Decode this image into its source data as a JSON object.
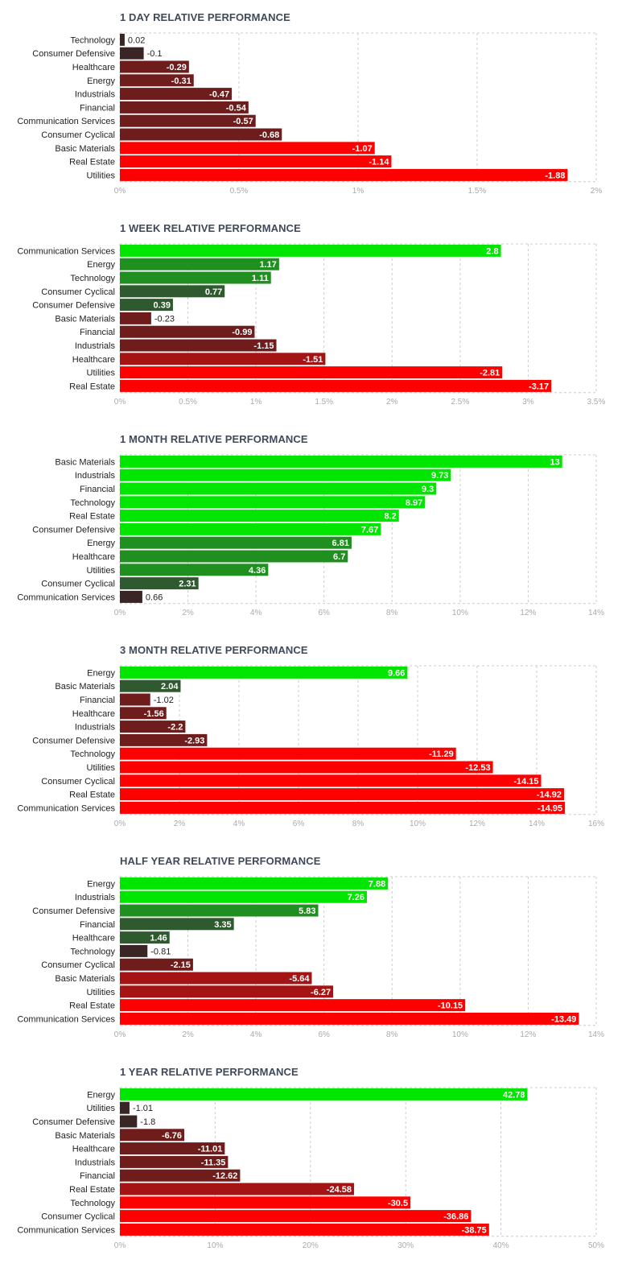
{
  "colors": {
    "positive_strong": "#00e600",
    "positive_mid": "#1f8f1f",
    "positive_dark": "#2f5a2f",
    "neutral_dark": "#3a2525",
    "negative_dark": "#6e1c1c",
    "negative_mid": "#a51414",
    "negative_strong": "#ff0000",
    "grid": "#cccccc",
    "tick_text": "#aaaaaa",
    "title_text": "#3f4a5a"
  },
  "chart_data": [
    {
      "type": "bar",
      "orientation": "horizontal",
      "title": "1 DAY RELATIVE PERFORMANCE",
      "categories": [
        "Technology",
        "Consumer Defensive",
        "Healthcare",
        "Energy",
        "Industrials",
        "Financial",
        "Communication Services",
        "Consumer Cyclical",
        "Basic Materials",
        "Real Estate",
        "Utilities"
      ],
      "values": [
        0.02,
        -0.1,
        -0.29,
        -0.31,
        -0.47,
        -0.54,
        -0.57,
        -0.68,
        -1.07,
        -1.14,
        -1.88
      ],
      "value_labels": [
        "0.02",
        "-0.1",
        "-0.29",
        "-0.31",
        "-0.47",
        "-0.54",
        "-0.57",
        "-0.68",
        "-1.07",
        "-1.14",
        "-1.88"
      ],
      "xlim": [
        0,
        2
      ],
      "xticks": [
        "0%",
        "0.5%",
        "1%",
        "1.5%",
        "2%"
      ],
      "tick_values": [
        0,
        0.5,
        1,
        1.5,
        2
      ]
    },
    {
      "type": "bar",
      "orientation": "horizontal",
      "title": "1 WEEK RELATIVE PERFORMANCE",
      "categories": [
        "Communication Services",
        "Energy",
        "Technology",
        "Consumer Cyclical",
        "Consumer Defensive",
        "Basic Materials",
        "Financial",
        "Industrials",
        "Healthcare",
        "Utilities",
        "Real Estate"
      ],
      "values": [
        2.8,
        1.17,
        1.11,
        0.77,
        0.39,
        -0.23,
        -0.99,
        -1.15,
        -1.51,
        -2.81,
        -3.17
      ],
      "value_labels": [
        "2.8",
        "1.17",
        "1.11",
        "0.77",
        "0.39",
        "-0.23",
        "-0.99",
        "-1.15",
        "-1.51",
        "-2.81",
        "-3.17"
      ],
      "xlim": [
        0,
        3.5
      ],
      "xticks": [
        "0%",
        "0.5%",
        "1%",
        "1.5%",
        "2%",
        "2.5%",
        "3%",
        "3.5%"
      ],
      "tick_values": [
        0,
        0.5,
        1,
        1.5,
        2,
        2.5,
        3,
        3.5
      ]
    },
    {
      "type": "bar",
      "orientation": "horizontal",
      "title": "1 MONTH RELATIVE PERFORMANCE",
      "categories": [
        "Basic Materials",
        "Industrials",
        "Financial",
        "Technology",
        "Real Estate",
        "Consumer Defensive",
        "Energy",
        "Healthcare",
        "Utilities",
        "Consumer Cyclical",
        "Communication Services"
      ],
      "values": [
        13,
        9.73,
        9.3,
        8.97,
        8.2,
        7.67,
        6.81,
        6.7,
        4.36,
        2.31,
        0.66
      ],
      "value_labels": [
        "13",
        "9.73",
        "9.3",
        "8.97",
        "8.2",
        "7.67",
        "6.81",
        "6.7",
        "4.36",
        "2.31",
        "0.66"
      ],
      "xlim": [
        0,
        14
      ],
      "xticks": [
        "0%",
        "2%",
        "4%",
        "6%",
        "8%",
        "10%",
        "12%",
        "14%"
      ],
      "tick_values": [
        0,
        2,
        4,
        6,
        8,
        10,
        12,
        14
      ]
    },
    {
      "type": "bar",
      "orientation": "horizontal",
      "title": "3 MONTH RELATIVE PERFORMANCE",
      "categories": [
        "Energy",
        "Basic Materials",
        "Financial",
        "Healthcare",
        "Industrials",
        "Consumer Defensive",
        "Technology",
        "Utilities",
        "Consumer Cyclical",
        "Real Estate",
        "Communication Services"
      ],
      "values": [
        9.66,
        2.04,
        -1.02,
        -1.56,
        -2.2,
        -2.93,
        -11.29,
        -12.53,
        -14.15,
        -14.92,
        -14.95
      ],
      "value_labels": [
        "9.66",
        "2.04",
        "-1.02",
        "-1.56",
        "-2.2",
        "-2.93",
        "-11.29",
        "-12.53",
        "-14.15",
        "-14.92",
        "-14.95"
      ],
      "xlim": [
        0,
        16
      ],
      "xticks": [
        "0%",
        "2%",
        "4%",
        "6%",
        "8%",
        "10%",
        "12%",
        "14%",
        "16%"
      ],
      "tick_values": [
        0,
        2,
        4,
        6,
        8,
        10,
        12,
        14,
        16
      ]
    },
    {
      "type": "bar",
      "orientation": "horizontal",
      "title": "HALF YEAR RELATIVE PERFORMANCE",
      "categories": [
        "Energy",
        "Industrials",
        "Consumer Defensive",
        "Financial",
        "Healthcare",
        "Technology",
        "Consumer Cyclical",
        "Basic Materials",
        "Utilities",
        "Real Estate",
        "Communication Services"
      ],
      "values": [
        7.88,
        7.26,
        5.83,
        3.35,
        1.46,
        -0.81,
        -2.15,
        -5.64,
        -6.27,
        -10.15,
        -13.49
      ],
      "value_labels": [
        "7.88",
        "7.26",
        "5.83",
        "3.35",
        "1.46",
        "-0.81",
        "-2.15",
        "-5.64",
        "-6.27",
        "-10.15",
        "-13.49"
      ],
      "xlim": [
        0,
        14
      ],
      "xticks": [
        "0%",
        "2%",
        "4%",
        "6%",
        "8%",
        "10%",
        "12%",
        "14%"
      ],
      "tick_values": [
        0,
        2,
        4,
        6,
        8,
        10,
        12,
        14
      ]
    },
    {
      "type": "bar",
      "orientation": "horizontal",
      "title": "1 YEAR RELATIVE PERFORMANCE",
      "categories": [
        "Energy",
        "Utilities",
        "Consumer Defensive",
        "Basic Materials",
        "Healthcare",
        "Industrials",
        "Financial",
        "Real Estate",
        "Technology",
        "Consumer Cyclical",
        "Communication Services"
      ],
      "values": [
        42.78,
        -1.01,
        -1.8,
        -6.76,
        -11.01,
        -11.35,
        -12.62,
        -24.58,
        -30.5,
        -36.86,
        -38.75
      ],
      "value_labels": [
        "42.78",
        "-1.01",
        "-1.8",
        "-6.76",
        "-11.01",
        "-11.35",
        "-12.62",
        "-24.58",
        "-30.5",
        "-36.86",
        "-38.75"
      ],
      "xlim": [
        0,
        50
      ],
      "xticks": [
        "0%",
        "10%",
        "20%",
        "30%",
        "40%",
        "50%"
      ],
      "tick_values": [
        0,
        10,
        20,
        30,
        40,
        50
      ]
    }
  ]
}
